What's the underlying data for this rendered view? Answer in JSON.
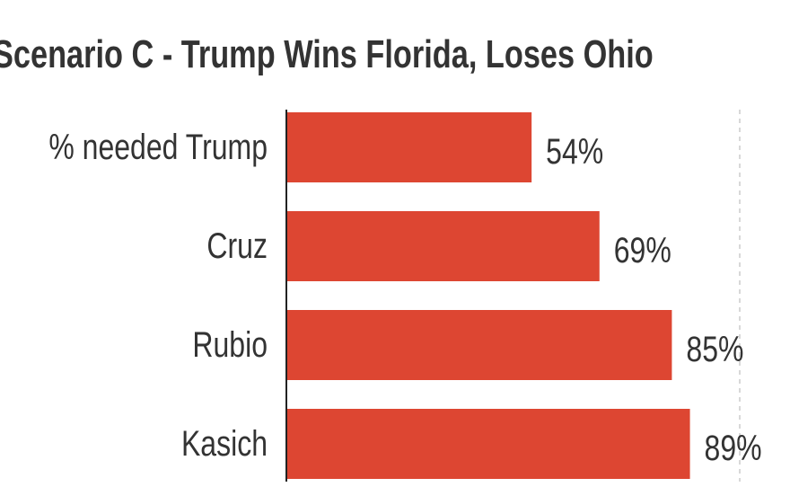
{
  "chart_data": {
    "type": "bar",
    "orientation": "horizontal",
    "title": "Scenario C - Trump Wins Florida, Loses Ohio",
    "categories": [
      "% needed Trump",
      "Cruz",
      "Rubio",
      "Kasich"
    ],
    "values": [
      54,
      69,
      85,
      89
    ],
    "value_labels": [
      "54%",
      "69%",
      "85%",
      "89%"
    ],
    "xlabel": "",
    "ylabel": "",
    "xlim": [
      0,
      100
    ],
    "reference_line": 100,
    "bar_color": "#dd4632"
  }
}
